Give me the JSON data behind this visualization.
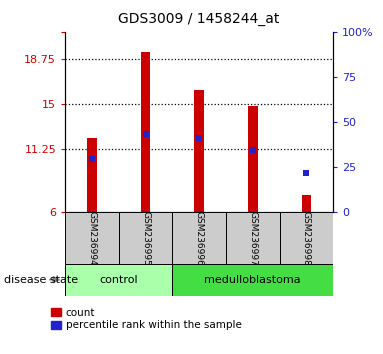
{
  "title": "GDS3009 / 1458244_at",
  "samples": [
    "GSM236994",
    "GSM236995",
    "GSM236996",
    "GSM236997",
    "GSM236998"
  ],
  "bar_heights": [
    12.2,
    19.35,
    16.2,
    14.85,
    7.45
  ],
  "bar_bottom": 6.0,
  "percentile_values": [
    10.4,
    12.55,
    12.15,
    11.2,
    9.3
  ],
  "bar_color": "#cc0000",
  "percentile_color": "#2222cc",
  "ylim_left": [
    6,
    21
  ],
  "yticks_left": [
    6,
    11.25,
    15,
    18.75,
    21
  ],
  "ytick_labels_left": [
    "6",
    "11.25",
    "15",
    "18.75",
    ""
  ],
  "ylim_right": [
    0,
    100
  ],
  "yticks_right": [
    0,
    25,
    50,
    75,
    100
  ],
  "ytick_labels_right": [
    "0",
    "25",
    "50",
    "75",
    "100%"
  ],
  "hlines": [
    11.25,
    15,
    18.75
  ],
  "groups": [
    {
      "label": "control",
      "indices": [
        0,
        1
      ],
      "color": "#aaffaa"
    },
    {
      "label": "medulloblastoma",
      "indices": [
        2,
        3,
        4
      ],
      "color": "#44dd44"
    }
  ],
  "group_label_prefix": "disease state",
  "legend_count_label": "count",
  "legend_percentile_label": "percentile rank within the sample",
  "bar_width": 0.18,
  "label_box_color": "#cccccc"
}
